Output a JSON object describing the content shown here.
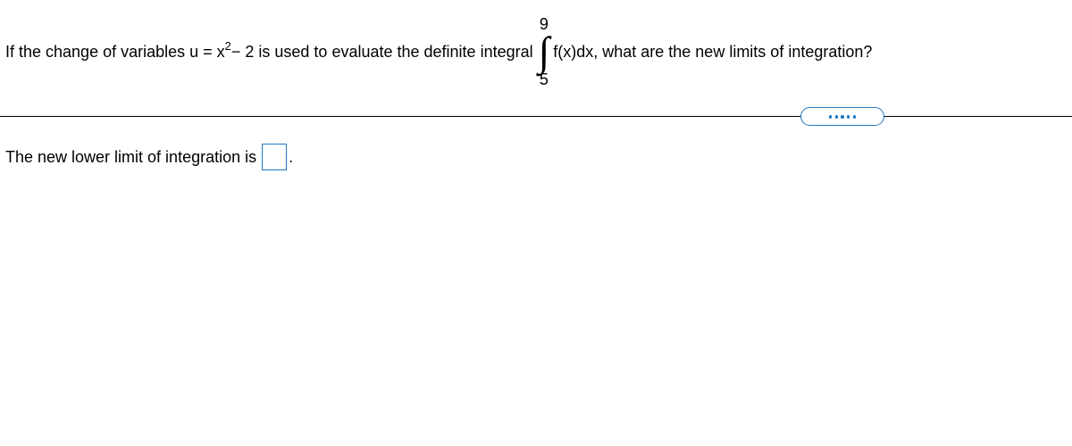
{
  "question": {
    "part1": "If the change of variables u = x",
    "exp": "2",
    "part2": " − 2 is used to evaluate the definite integral ",
    "upper_limit": "9",
    "lower_limit": "5",
    "integrand": "f(x)",
    "dx": " dx, what are the new limits of integration?",
    "integral_symbol": "∫"
  },
  "answer": {
    "label": "The new lower limit of integration is ",
    "value": "",
    "period": "."
  },
  "colors": {
    "accent": "#1f78c1",
    "text": "#000000",
    "background": "#ffffff"
  }
}
